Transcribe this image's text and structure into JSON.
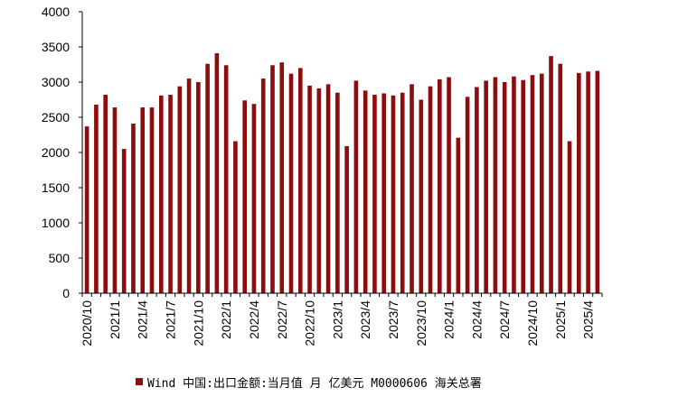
{
  "chart_data": {
    "type": "bar",
    "title": "",
    "xlabel": "",
    "ylabel": "",
    "ylim": [
      0,
      4000
    ],
    "yticks": [
      0,
      500,
      1000,
      1500,
      2000,
      2500,
      3000,
      3500,
      4000
    ],
    "grid": false,
    "legend_position": "bottom",
    "bar_color": "#8b0d0d",
    "categories": [
      "2020/10",
      "2020/11",
      "2020/12",
      "2021/1",
      "2021/2",
      "2021/3",
      "2021/4",
      "2021/5",
      "2021/6",
      "2021/7",
      "2021/8",
      "2021/9",
      "2021/10",
      "2021/11",
      "2021/12",
      "2022/1",
      "2022/2",
      "2022/3",
      "2022/4",
      "2022/5",
      "2022/6",
      "2022/7",
      "2022/8",
      "2022/9",
      "2022/10",
      "2022/11",
      "2022/12",
      "2023/1",
      "2023/2",
      "2023/3",
      "2023/4",
      "2023/5",
      "2023/6",
      "2023/7",
      "2023/8",
      "2023/9",
      "2023/10",
      "2023/11",
      "2023/12",
      "2024/1",
      "2024/2",
      "2024/3",
      "2024/4",
      "2024/5",
      "2024/6",
      "2024/7",
      "2024/8",
      "2024/9",
      "2024/10",
      "2024/11",
      "2024/12",
      "2025/1",
      "2025/2",
      "2025/3",
      "2025/4",
      "2025/5"
    ],
    "xtick_labels": [
      "2020/10",
      "2021/1",
      "2021/4",
      "2021/7",
      "2021/10",
      "2022/1",
      "2022/4",
      "2022/7",
      "2022/10",
      "2023/1",
      "2023/4",
      "2023/7",
      "2023/10",
      "2024/1",
      "2024/4",
      "2024/7",
      "2024/10",
      "2025/1",
      "2025/4"
    ],
    "series": [
      {
        "name": "Wind 中国:出口金额:当月值 月 亿美元 M0000606 海关总署",
        "values": [
          2370,
          2680,
          2820,
          2640,
          2050,
          2410,
          2640,
          2640,
          2810,
          2820,
          2940,
          3050,
          3000,
          3260,
          3410,
          3240,
          2160,
          2740,
          2690,
          3050,
          3240,
          3280,
          3120,
          3200,
          2950,
          2910,
          2970,
          2850,
          2090,
          3020,
          2880,
          2820,
          2840,
          2810,
          2850,
          2970,
          2750,
          2940,
          3040,
          3070,
          2210,
          2790,
          2930,
          3020,
          3070,
          3000,
          3080,
          3030,
          3100,
          3120,
          3370,
          3260,
          2160,
          3130,
          3150,
          3160
        ]
      }
    ]
  }
}
